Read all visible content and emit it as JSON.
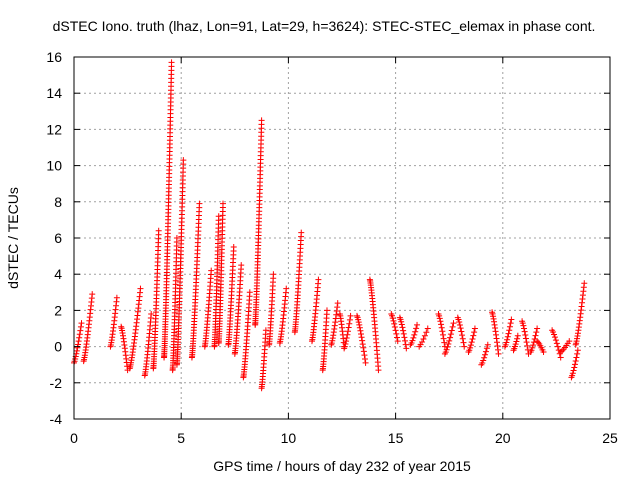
{
  "chart_data": {
    "type": "scatter",
    "title": "dSTEC Iono. truth (lhaz, Lon=91, Lat=29, h=3624): STEC-STEC_elemax in phase cont.",
    "xlabel": "GPS time / hours of day 232 of year 2015",
    "ylabel": "dSTEC  / TECUs",
    "xlim": [
      0,
      25
    ],
    "ylim": [
      -4,
      16
    ],
    "xticks": [
      0,
      5,
      10,
      15,
      20,
      25
    ],
    "yticks": [
      -4,
      -2,
      0,
      2,
      4,
      6,
      8,
      10,
      12,
      14,
      16
    ],
    "grid": true,
    "marker": "+",
    "color": "#ff0000",
    "arcs": [
      {
        "x": [
          0.0,
          0.35
        ],
        "y": [
          -0.9,
          1.3
        ]
      },
      {
        "x": [
          0.45,
          0.85
        ],
        "y": [
          -0.8,
          2.9
        ]
      },
      {
        "x": [
          1.7,
          2.0
        ],
        "y": [
          0.0,
          2.7
        ]
      },
      {
        "x": [
          2.2,
          2.5
        ],
        "y": [
          1.1,
          -1.3
        ]
      },
      {
        "x": [
          2.6,
          3.1
        ],
        "y": [
          -1.2,
          3.2
        ]
      },
      {
        "x": [
          3.3,
          3.6
        ],
        "y": [
          -1.6,
          1.8
        ]
      },
      {
        "x": [
          3.7,
          3.95
        ],
        "y": [
          -1.2,
          6.4
        ]
      },
      {
        "x": [
          4.2,
          4.55
        ],
        "y": [
          -0.6,
          15.7
        ]
      },
      {
        "x": [
          4.6,
          4.8
        ],
        "y": [
          -1.3,
          6.0
        ]
      },
      {
        "x": [
          4.8,
          5.1
        ],
        "y": [
          -1.0,
          10.3
        ]
      },
      {
        "x": [
          5.5,
          5.85
        ],
        "y": [
          -0.6,
          7.9
        ]
      },
      {
        "x": [
          6.1,
          6.4
        ],
        "y": [
          0.0,
          4.2
        ]
      },
      {
        "x": [
          6.55,
          6.75
        ],
        "y": [
          0.0,
          7.2
        ]
      },
      {
        "x": [
          6.75,
          6.95
        ],
        "y": [
          0.2,
          7.9
        ]
      },
      {
        "x": [
          7.2,
          7.45
        ],
        "y": [
          0.1,
          5.5
        ]
      },
      {
        "x": [
          7.5,
          7.8
        ],
        "y": [
          -0.4,
          4.5
        ]
      },
      {
        "x": [
          7.9,
          8.2
        ],
        "y": [
          -1.7,
          3.0
        ]
      },
      {
        "x": [
          8.45,
          8.75
        ],
        "y": [
          1.2,
          12.5
        ]
      },
      {
        "x": [
          8.75,
          8.95
        ],
        "y": [
          -2.3,
          0.9
        ]
      },
      {
        "x": [
          9.1,
          9.3
        ],
        "y": [
          0.1,
          4.0
        ]
      },
      {
        "x": [
          9.6,
          9.9
        ],
        "y": [
          0.2,
          3.2
        ]
      },
      {
        "x": [
          10.3,
          10.6
        ],
        "y": [
          0.8,
          6.3
        ]
      },
      {
        "x": [
          11.1,
          11.4
        ],
        "y": [
          0.3,
          3.7
        ]
      },
      {
        "x": [
          11.6,
          11.8
        ],
        "y": [
          -1.3,
          2.0
        ]
      },
      {
        "x": [
          12.0,
          12.3
        ],
        "y": [
          0.1,
          2.4
        ]
      },
      {
        "x": [
          12.4,
          12.6
        ],
        "y": [
          1.8,
          0.0
        ]
      },
      {
        "x": [
          12.6,
          12.9
        ],
        "y": [
          -0.1,
          1.7
        ]
      },
      {
        "x": [
          13.2,
          13.6
        ],
        "y": [
          1.7,
          -0.9
        ]
      },
      {
        "x": [
          13.8,
          14.2
        ],
        "y": [
          3.7,
          -1.3
        ]
      },
      {
        "x": [
          14.8,
          15.1
        ],
        "y": [
          1.8,
          0.3
        ]
      },
      {
        "x": [
          15.2,
          15.5
        ],
        "y": [
          1.6,
          -0.1
        ]
      },
      {
        "x": [
          15.7,
          16.0
        ],
        "y": [
          0.1,
          1.2
        ]
      },
      {
        "x": [
          16.1,
          16.5
        ],
        "y": [
          0.0,
          1.0
        ]
      },
      {
        "x": [
          17.0,
          17.3
        ],
        "y": [
          1.8,
          0.0
        ]
      },
      {
        "x": [
          17.3,
          17.7
        ],
        "y": [
          -0.4,
          1.3
        ]
      },
      {
        "x": [
          17.9,
          18.2
        ],
        "y": [
          1.6,
          0.0
        ]
      },
      {
        "x": [
          18.4,
          18.7
        ],
        "y": [
          -0.3,
          1.0
        ]
      },
      {
        "x": [
          19.0,
          19.3
        ],
        "y": [
          -1.0,
          0.1
        ]
      },
      {
        "x": [
          19.5,
          19.8
        ],
        "y": [
          1.9,
          -0.4
        ]
      },
      {
        "x": [
          20.1,
          20.4
        ],
        "y": [
          0.0,
          1.5
        ]
      },
      {
        "x": [
          20.5,
          20.7
        ],
        "y": [
          -0.2,
          0.6
        ]
      },
      {
        "x": [
          20.9,
          21.2
        ],
        "y": [
          1.4,
          -0.4
        ]
      },
      {
        "x": [
          21.3,
          21.6
        ],
        "y": [
          -0.3,
          1.0
        ]
      },
      {
        "x": [
          21.6,
          21.9
        ],
        "y": [
          0.3,
          -0.3
        ]
      },
      {
        "x": [
          22.3,
          22.7
        ],
        "y": [
          0.9,
          -0.6
        ]
      },
      {
        "x": [
          22.7,
          23.1
        ],
        "y": [
          -0.3,
          0.3
        ]
      },
      {
        "x": [
          23.2,
          23.5
        ],
        "y": [
          -1.7,
          -0.2
        ]
      },
      {
        "x": [
          23.4,
          23.8
        ],
        "y": [
          0.1,
          3.5
        ]
      }
    ]
  }
}
